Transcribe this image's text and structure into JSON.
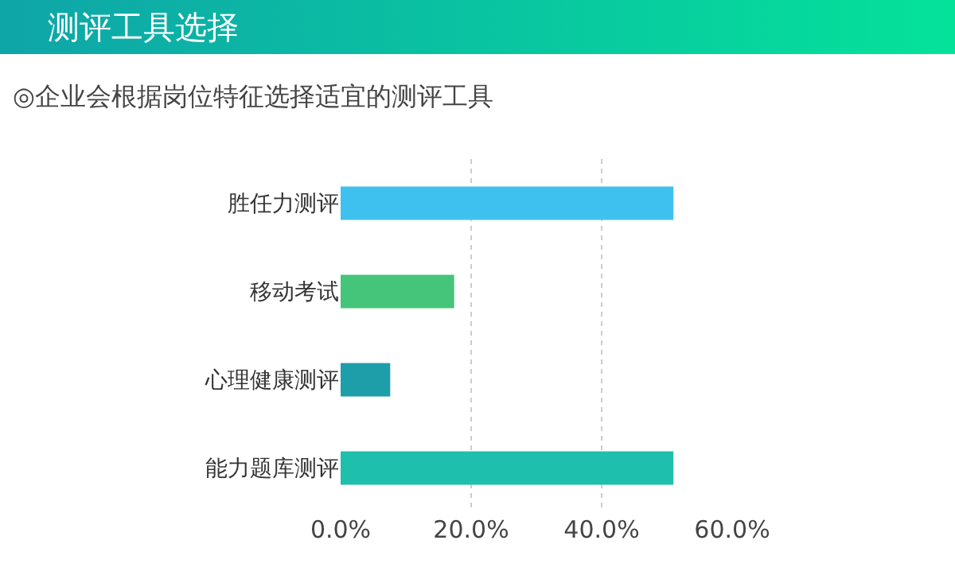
{
  "chart_data": {
    "type": "bar",
    "title": "测评工具选择",
    "subtitle": "◎企业会根据岗位特征选择适宜的测评工具",
    "orientation": "horizontal",
    "categories": [
      "胜任力测评",
      "移动考试",
      "心理健康测评",
      "能力题库测评"
    ],
    "values": [
      51,
      17.4,
      7.6,
      51
    ],
    "colors": [
      "#3fc1f0",
      "#45c579",
      "#1e9ea8",
      "#1fbfae"
    ],
    "xlim": [
      0,
      60
    ],
    "xticks": [
      {
        "value": 0,
        "label": "0.0%"
      },
      {
        "value": 20,
        "label": "20.0%"
      },
      {
        "value": 40,
        "label": "40.0%"
      },
      {
        "value": 60,
        "label": "60.0%"
      }
    ],
    "grid": "x"
  }
}
